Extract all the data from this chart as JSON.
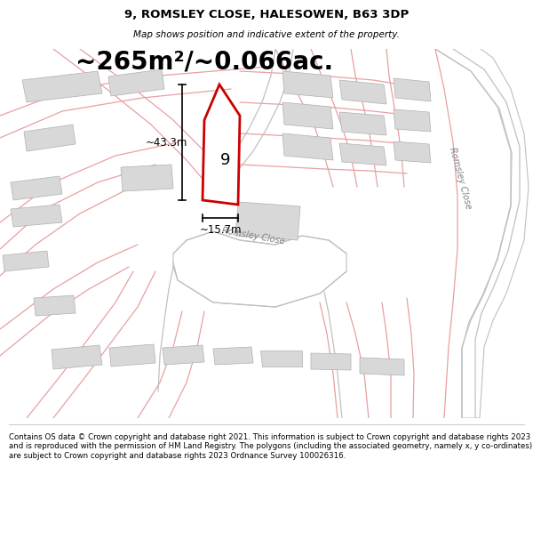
{
  "title_line1": "9, ROMSLEY CLOSE, HALESOWEN, B63 3DP",
  "title_line2": "Map shows position and indicative extent of the property.",
  "area_text": "~265m²/~0.066ac.",
  "dim_height": "~43.3m",
  "dim_width": "~15.7m",
  "plot_number": "9",
  "road_label_bottom": "Romsley Close",
  "road_label_right": "Romsley Close",
  "footer_text": "Contains OS data © Crown copyright and database right 2021. This information is subject to Crown copyright and database rights 2023 and is reproduced with the permission of HM Land Registry. The polygons (including the associated geometry, namely x, y co-ordinates) are subject to Crown copyright and database rights 2023 Ordnance Survey 100026316.",
  "bg_color": "#f2f2f2",
  "plot_fill": "#ffffff",
  "plot_edge": "#cc0000",
  "building_fill": "#d8d8d8",
  "building_edge": "#b0b0b0",
  "pink_line_color": "#e8a0a0",
  "grey_line_color": "#c0c0c0",
  "white_bg": "#ffffff",
  "title_fontsize": 9.5,
  "subtitle_fontsize": 7.5,
  "area_fontsize": 20,
  "dim_fontsize": 8.5,
  "plot_num_fontsize": 13,
  "road_label_fontsize": 7,
  "footer_fontsize": 6.2
}
